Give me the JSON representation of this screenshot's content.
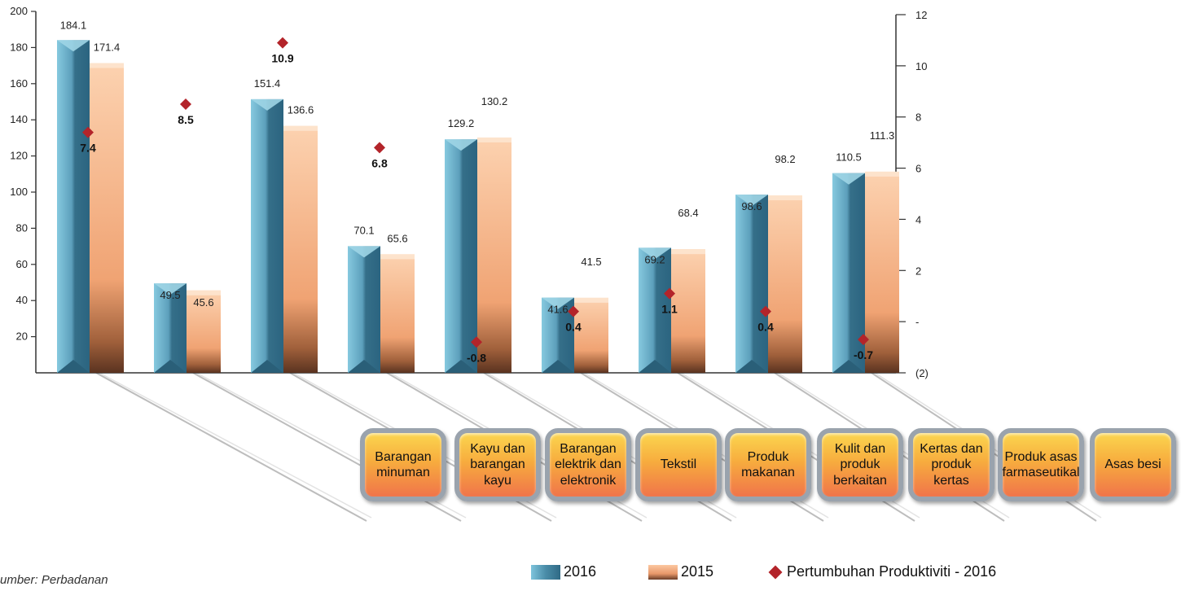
{
  "chart_data": {
    "type": "bar",
    "categories": [
      "Barangan minuman",
      "Kayu dan barangan kayu",
      "Barangan elektrik dan elektronik",
      "Tekstil",
      "Produk makanan",
      "Kulit dan produk berkaitan",
      "Kertas dan produk kertas",
      "Produk asas farmaseutikal",
      "Asas besi"
    ],
    "series": [
      {
        "name": "2016",
        "values": [
          184.1,
          49.5,
          151.4,
          70.1,
          129.2,
          41.6,
          69.2,
          98.6,
          110.5
        ],
        "color": "#4a8ca8"
      },
      {
        "name": "2015",
        "values": [
          171.4,
          45.6,
          136.6,
          65.6,
          130.2,
          41.5,
          68.4,
          98.2,
          111.3
        ],
        "color": "#f2a77a"
      }
    ],
    "growth": {
      "name": "Pertumbuhan Produktiviti - 2016",
      "values": [
        7.4,
        8.5,
        10.9,
        6.8,
        -0.8,
        0.4,
        1.1,
        0.4,
        -0.7
      ],
      "color": "#b3242a"
    },
    "y_left": {
      "ticks": [
        "200",
        "180",
        "160",
        "140",
        "120",
        "100",
        "80",
        "60",
        "40",
        "20"
      ],
      "range": [
        0,
        200
      ]
    },
    "y_right": {
      "ticks": [
        "12",
        "10",
        "8",
        "6",
        "4",
        "2",
        "-",
        "(2)"
      ],
      "range": [
        -2,
        12
      ]
    },
    "legend_position": "bottom-right"
  },
  "legend": {
    "label_2016": "2016",
    "label_2015": "2015",
    "label_growth": "Pertumbuhan Produktiviti - 2016"
  },
  "source": "umber: Perbadanan",
  "bubbles": [
    "Barangan minuman",
    "Kayu dan barangan kayu",
    "Barangan elektrik dan elektronik",
    "Tekstil",
    "Produk makanan",
    "Kulit dan produk berkaitan",
    "Kertas dan produk kertas",
    "Produk asas farmaseutikal",
    "Asas besi"
  ]
}
